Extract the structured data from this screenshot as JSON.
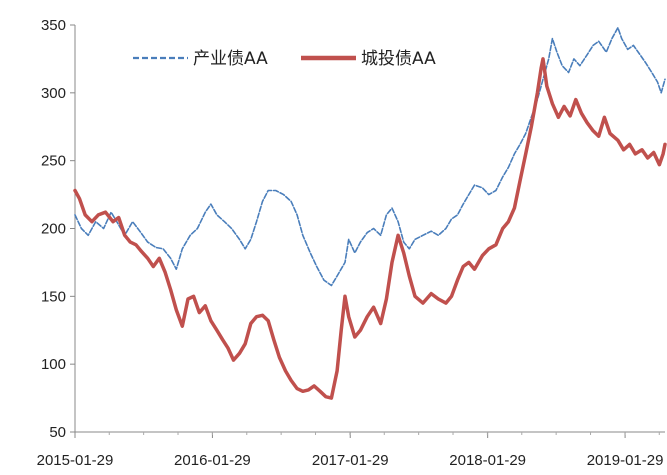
{
  "chart_data": {
    "type": "line",
    "title": "",
    "xlabel": "",
    "ylabel": "",
    "ylim": [
      50,
      350
    ],
    "yticks": [
      50,
      100,
      150,
      200,
      250,
      300,
      350
    ],
    "xlim": [
      "2015-01-29",
      "2019-05-15"
    ],
    "xticks": [
      "2015-01-29",
      "2016-01-29",
      "2017-01-29",
      "2018-01-29",
      "2019-01-29"
    ],
    "grid": false,
    "legend_position": "top-center",
    "series": [
      {
        "name": "产业债AA",
        "color": "#4a7ebb",
        "style": "dashed",
        "points": [
          [
            "2015-01-29",
            210
          ],
          [
            "2015-02-15",
            200
          ],
          [
            "2015-03-05",
            195
          ],
          [
            "2015-03-25",
            205
          ],
          [
            "2015-04-15",
            200
          ],
          [
            "2015-05-05",
            212
          ],
          [
            "2015-05-20",
            205
          ],
          [
            "2015-06-10",
            195
          ],
          [
            "2015-07-01",
            205
          ],
          [
            "2015-07-20",
            198
          ],
          [
            "2015-08-10",
            190
          ],
          [
            "2015-09-01",
            186
          ],
          [
            "2015-09-20",
            185
          ],
          [
            "2015-10-10",
            178
          ],
          [
            "2015-10-25",
            170
          ],
          [
            "2015-11-10",
            185
          ],
          [
            "2015-12-01",
            195
          ],
          [
            "2015-12-20",
            200
          ],
          [
            "2016-01-10",
            212
          ],
          [
            "2016-01-25",
            218
          ],
          [
            "2016-02-10",
            210
          ],
          [
            "2016-03-01",
            205
          ],
          [
            "2016-03-20",
            200
          ],
          [
            "2016-04-10",
            192
          ],
          [
            "2016-04-25",
            185
          ],
          [
            "2016-05-10",
            192
          ],
          [
            "2016-05-25",
            205
          ],
          [
            "2016-06-10",
            220
          ],
          [
            "2016-06-25",
            228
          ],
          [
            "2016-07-15",
            228
          ],
          [
            "2016-08-05",
            225
          ],
          [
            "2016-08-25",
            220
          ],
          [
            "2016-09-10",
            210
          ],
          [
            "2016-09-25",
            195
          ],
          [
            "2016-10-15",
            182
          ],
          [
            "2016-11-01",
            172
          ],
          [
            "2016-11-20",
            162
          ],
          [
            "2016-12-10",
            158
          ],
          [
            "2016-12-25",
            165
          ],
          [
            "2017-01-15",
            175
          ],
          [
            "2017-01-25",
            192
          ],
          [
            "2017-02-10",
            182
          ],
          [
            "2017-02-25",
            190
          ],
          [
            "2017-03-15",
            197
          ],
          [
            "2017-04-01",
            200
          ],
          [
            "2017-04-20",
            195
          ],
          [
            "2017-05-05",
            210
          ],
          [
            "2017-05-20",
            215
          ],
          [
            "2017-06-05",
            205
          ],
          [
            "2017-06-20",
            190
          ],
          [
            "2017-07-05",
            185
          ],
          [
            "2017-07-20",
            192
          ],
          [
            "2017-08-10",
            195
          ],
          [
            "2017-09-01",
            198
          ],
          [
            "2017-09-20",
            195
          ],
          [
            "2017-10-10",
            200
          ],
          [
            "2017-10-25",
            207
          ],
          [
            "2017-11-10",
            210
          ],
          [
            "2017-11-25",
            218
          ],
          [
            "2017-12-10",
            225
          ],
          [
            "2017-12-25",
            232
          ],
          [
            "2018-01-15",
            230
          ],
          [
            "2018-02-01",
            225
          ],
          [
            "2018-02-20",
            228
          ],
          [
            "2018-03-10",
            238
          ],
          [
            "2018-03-25",
            245
          ],
          [
            "2018-04-10",
            255
          ],
          [
            "2018-04-25",
            262
          ],
          [
            "2018-05-10",
            270
          ],
          [
            "2018-05-25",
            282
          ],
          [
            "2018-06-10",
            295
          ],
          [
            "2018-06-25",
            310
          ],
          [
            "2018-07-10",
            325
          ],
          [
            "2018-07-20",
            340
          ],
          [
            "2018-08-01",
            330
          ],
          [
            "2018-08-15",
            320
          ],
          [
            "2018-09-01",
            315
          ],
          [
            "2018-09-15",
            325
          ],
          [
            "2018-10-01",
            320
          ],
          [
            "2018-10-20",
            328
          ],
          [
            "2018-11-05",
            335
          ],
          [
            "2018-11-20",
            338
          ],
          [
            "2018-12-10",
            330
          ],
          [
            "2018-12-25",
            340
          ],
          [
            "2019-01-10",
            348
          ],
          [
            "2019-01-20",
            340
          ],
          [
            "2019-02-05",
            332
          ],
          [
            "2019-02-20",
            335
          ],
          [
            "2019-03-10",
            328
          ],
          [
            "2019-03-25",
            322
          ],
          [
            "2019-04-10",
            315
          ],
          [
            "2019-04-25",
            308
          ],
          [
            "2019-05-05",
            300
          ],
          [
            "2019-05-15",
            310
          ]
        ]
      },
      {
        "name": "城投债AA",
        "color": "#c0504d",
        "style": "solid",
        "points": [
          [
            "2015-01-29",
            228
          ],
          [
            "2015-02-10",
            222
          ],
          [
            "2015-02-25",
            210
          ],
          [
            "2015-03-15",
            205
          ],
          [
            "2015-04-01",
            210
          ],
          [
            "2015-04-20",
            212
          ],
          [
            "2015-05-10",
            205
          ],
          [
            "2015-05-25",
            208
          ],
          [
            "2015-06-10",
            195
          ],
          [
            "2015-06-25",
            190
          ],
          [
            "2015-07-10",
            188
          ],
          [
            "2015-07-25",
            183
          ],
          [
            "2015-08-10",
            178
          ],
          [
            "2015-08-25",
            172
          ],
          [
            "2015-09-10",
            178
          ],
          [
            "2015-09-25",
            168
          ],
          [
            "2015-10-10",
            155
          ],
          [
            "2015-10-25",
            140
          ],
          [
            "2015-11-10",
            128
          ],
          [
            "2015-11-25",
            148
          ],
          [
            "2015-12-10",
            150
          ],
          [
            "2015-12-25",
            138
          ],
          [
            "2016-01-10",
            143
          ],
          [
            "2016-01-25",
            132
          ],
          [
            "2016-02-10",
            125
          ],
          [
            "2016-02-25",
            118
          ],
          [
            "2016-03-10",
            112
          ],
          [
            "2016-03-25",
            103
          ],
          [
            "2016-04-10",
            108
          ],
          [
            "2016-04-25",
            115
          ],
          [
            "2016-05-10",
            130
          ],
          [
            "2016-05-25",
            135
          ],
          [
            "2016-06-10",
            136
          ],
          [
            "2016-06-25",
            132
          ],
          [
            "2016-07-10",
            118
          ],
          [
            "2016-07-25",
            105
          ],
          [
            "2016-08-10",
            95
          ],
          [
            "2016-08-25",
            88
          ],
          [
            "2016-09-10",
            82
          ],
          [
            "2016-09-25",
            80
          ],
          [
            "2016-10-10",
            81
          ],
          [
            "2016-10-25",
            84
          ],
          [
            "2016-11-10",
            80
          ],
          [
            "2016-11-25",
            76
          ],
          [
            "2016-12-10",
            75
          ],
          [
            "2016-12-25",
            95
          ],
          [
            "2017-01-05",
            125
          ],
          [
            "2017-01-15",
            150
          ],
          [
            "2017-01-25",
            135
          ],
          [
            "2017-02-10",
            120
          ],
          [
            "2017-02-25",
            125
          ],
          [
            "2017-03-15",
            135
          ],
          [
            "2017-04-01",
            142
          ],
          [
            "2017-04-20",
            130
          ],
          [
            "2017-05-05",
            148
          ],
          [
            "2017-05-20",
            175
          ],
          [
            "2017-06-05",
            195
          ],
          [
            "2017-06-20",
            182
          ],
          [
            "2017-07-05",
            165
          ],
          [
            "2017-07-20",
            150
          ],
          [
            "2017-08-10",
            145
          ],
          [
            "2017-09-01",
            152
          ],
          [
            "2017-09-20",
            148
          ],
          [
            "2017-10-10",
            145
          ],
          [
            "2017-10-25",
            150
          ],
          [
            "2017-11-10",
            162
          ],
          [
            "2017-11-25",
            172
          ],
          [
            "2017-12-10",
            175
          ],
          [
            "2017-12-25",
            170
          ],
          [
            "2018-01-15",
            180
          ],
          [
            "2018-02-01",
            185
          ],
          [
            "2018-02-20",
            188
          ],
          [
            "2018-03-10",
            200
          ],
          [
            "2018-03-25",
            205
          ],
          [
            "2018-04-10",
            215
          ],
          [
            "2018-04-25",
            235
          ],
          [
            "2018-05-10",
            255
          ],
          [
            "2018-05-25",
            275
          ],
          [
            "2018-06-10",
            300
          ],
          [
            "2018-06-20",
            318
          ],
          [
            "2018-06-25",
            325
          ],
          [
            "2018-07-05",
            305
          ],
          [
            "2018-07-20",
            292
          ],
          [
            "2018-08-05",
            282
          ],
          [
            "2018-08-20",
            290
          ],
          [
            "2018-09-05",
            283
          ],
          [
            "2018-09-20",
            295
          ],
          [
            "2018-10-05",
            285
          ],
          [
            "2018-10-20",
            278
          ],
          [
            "2018-11-05",
            272
          ],
          [
            "2018-11-20",
            268
          ],
          [
            "2018-12-05",
            282
          ],
          [
            "2018-12-20",
            270
          ],
          [
            "2019-01-10",
            265
          ],
          [
            "2019-01-25",
            258
          ],
          [
            "2019-02-10",
            262
          ],
          [
            "2019-02-25",
            255
          ],
          [
            "2019-03-15",
            258
          ],
          [
            "2019-03-30",
            252
          ],
          [
            "2019-04-15",
            256
          ],
          [
            "2019-04-30",
            247
          ],
          [
            "2019-05-10",
            255
          ],
          [
            "2019-05-15",
            262
          ]
        ]
      }
    ]
  }
}
